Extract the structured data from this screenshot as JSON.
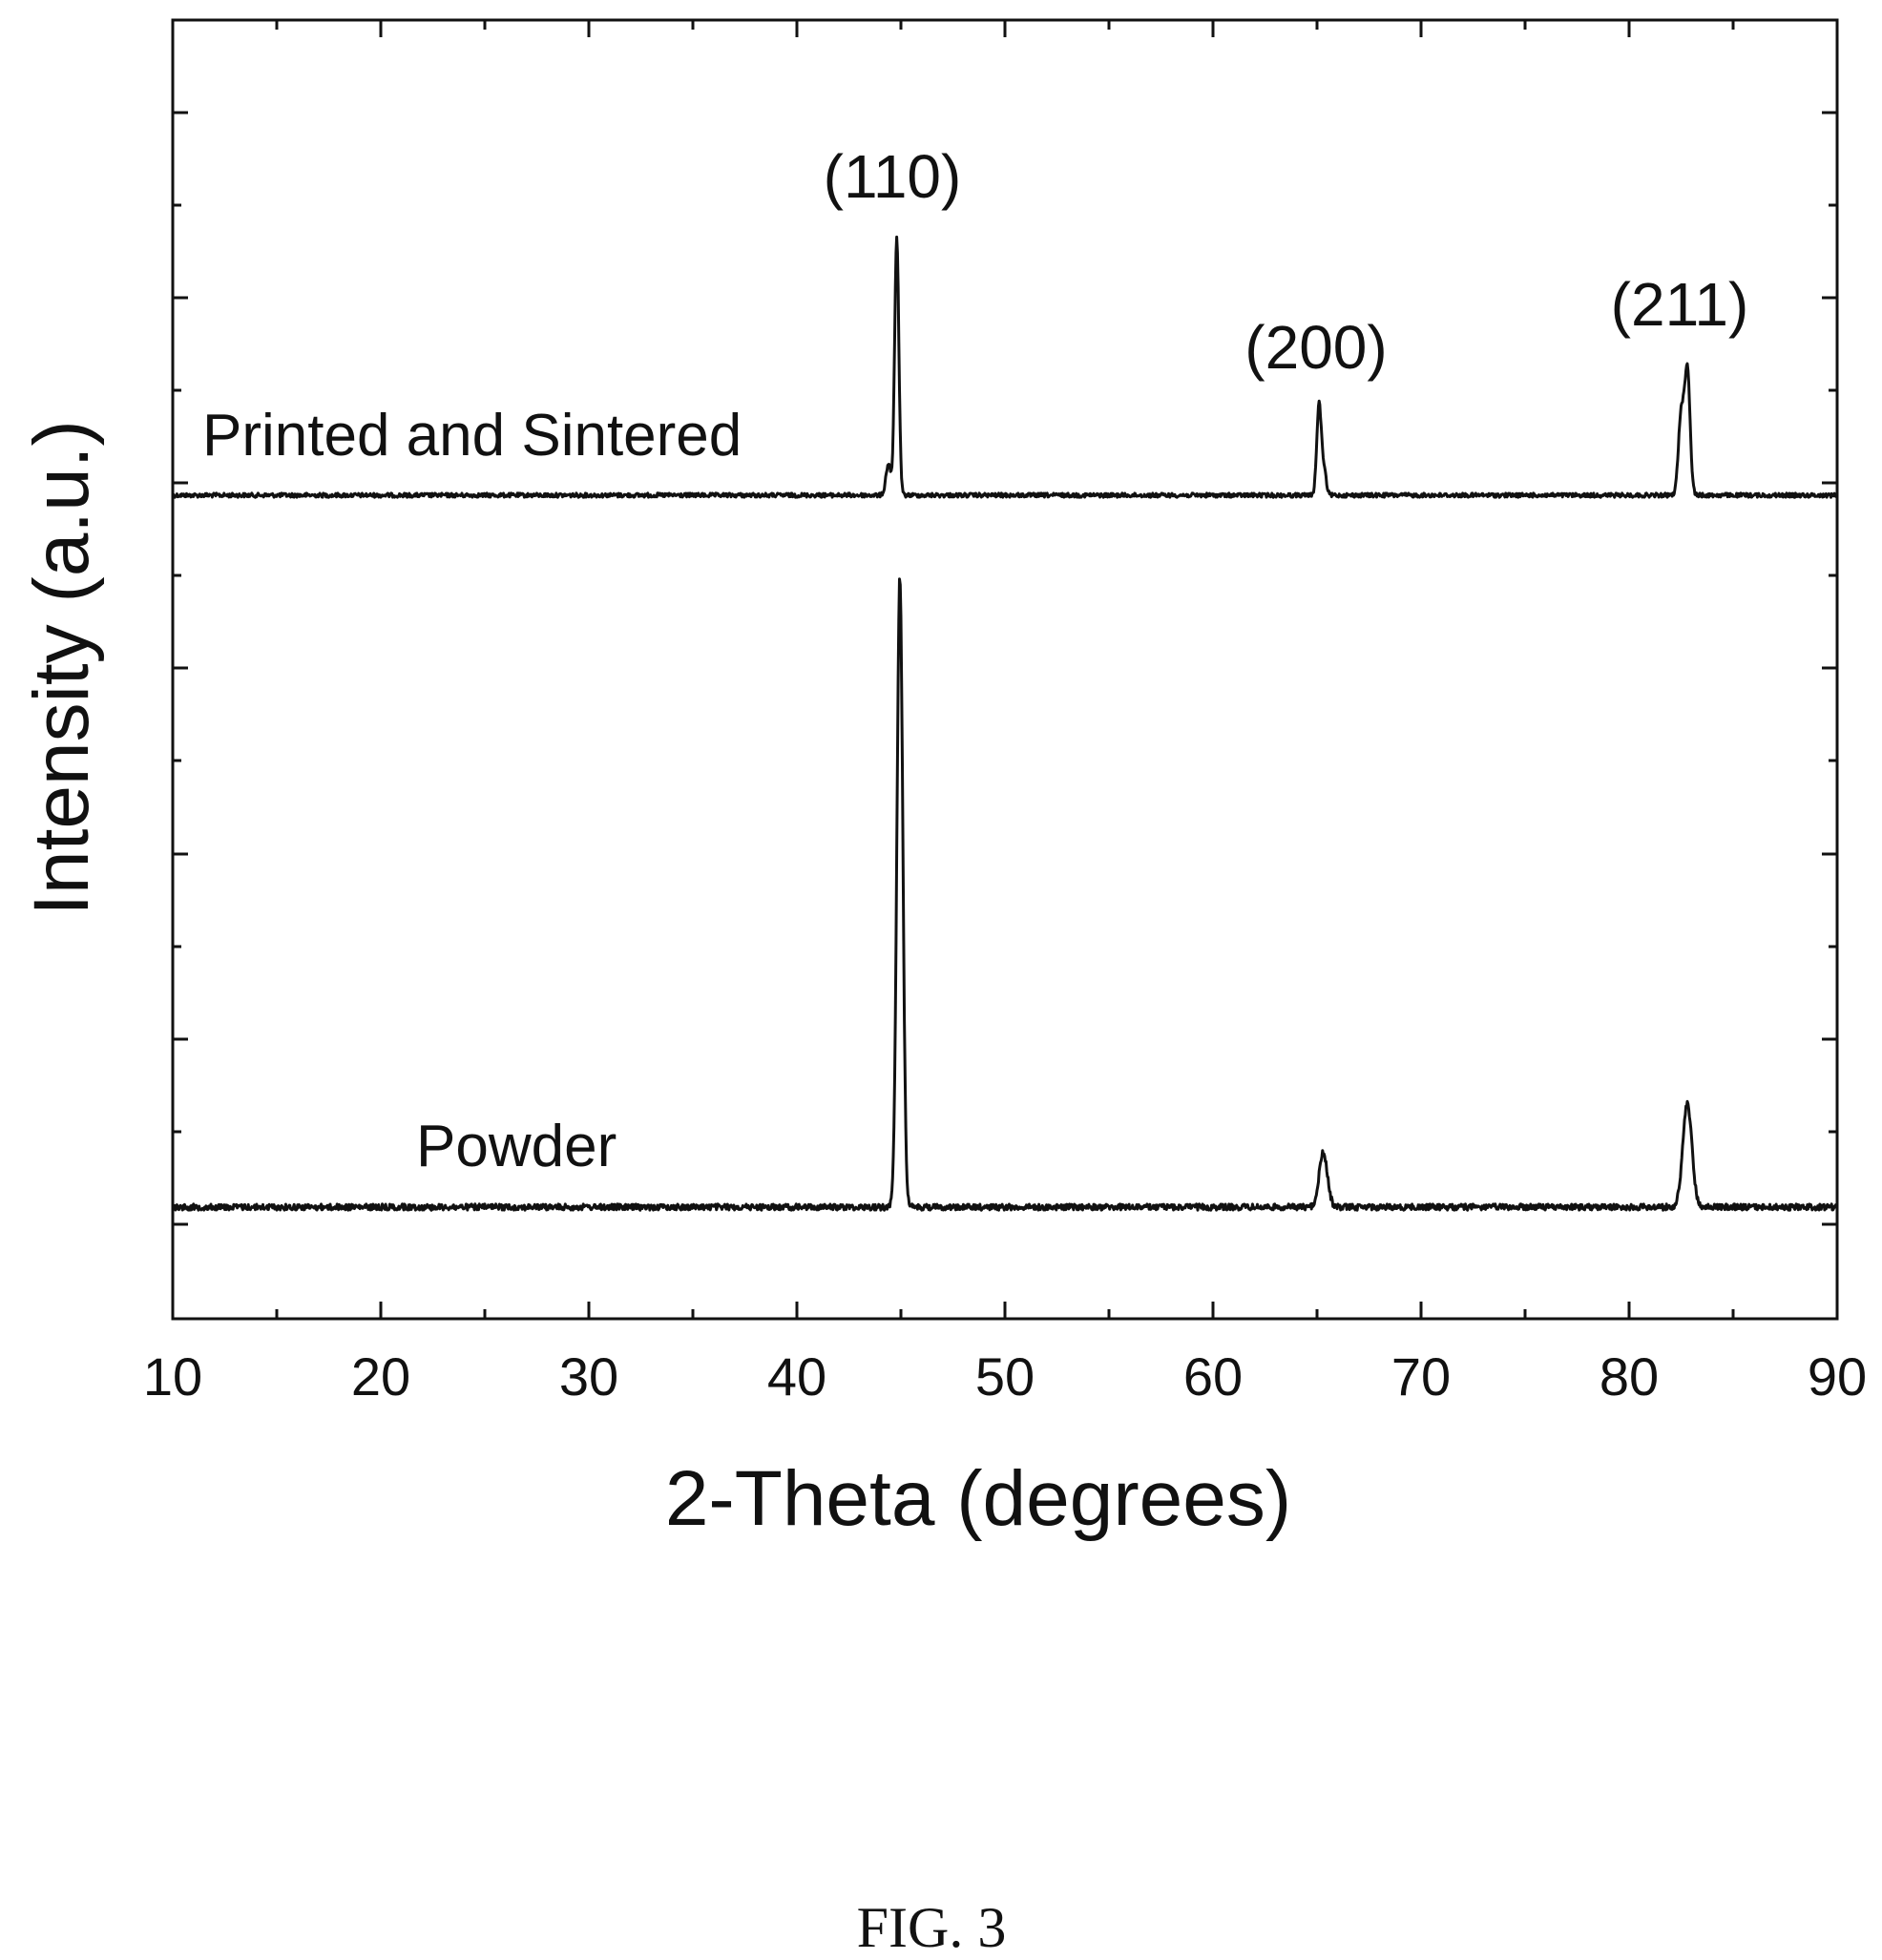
{
  "figure_label": "FIG. 3",
  "chart_data": {
    "type": "line",
    "title": "",
    "xlabel": "2-Theta (degrees)",
    "ylabel": "Intensity (a.u.)",
    "xlim": [
      10,
      90
    ],
    "x_ticks": [
      10,
      20,
      30,
      40,
      50,
      60,
      70,
      80,
      90
    ],
    "x_tick_labels": [
      "10",
      "20",
      "30",
      "40",
      "50",
      "60",
      "70",
      "80",
      "90"
    ],
    "y_tick_labels_shown": false,
    "grid": false,
    "legend": "none",
    "line_color": "#111111",
    "series": [
      {
        "name": "Printed and Sintered",
        "baseline": 0,
        "peaks": [
          {
            "x": 44.4,
            "height": 0.11,
            "width": 0.12
          },
          {
            "x": 44.8,
            "height": 0.9,
            "width": 0.1
          },
          {
            "x": 65.1,
            "height": 0.32,
            "width": 0.11
          },
          {
            "x": 65.35,
            "height": 0.08,
            "width": 0.1
          },
          {
            "x": 82.5,
            "height": 0.28,
            "width": 0.13
          },
          {
            "x": 82.8,
            "height": 0.44,
            "width": 0.13
          }
        ]
      },
      {
        "name": "Powder",
        "baseline": 0,
        "peaks": [
          {
            "x": 44.95,
            "height": 2.2,
            "width": 0.14
          },
          {
            "x": 65.3,
            "height": 0.19,
            "width": 0.2
          },
          {
            "x": 82.8,
            "height": 0.36,
            "width": 0.22
          }
        ]
      }
    ],
    "annotations": [
      {
        "text": "(110)",
        "x": 44.8
      },
      {
        "text": "(200)",
        "x": 65.1
      },
      {
        "text": "(211)",
        "x": 82.8
      }
    ]
  }
}
